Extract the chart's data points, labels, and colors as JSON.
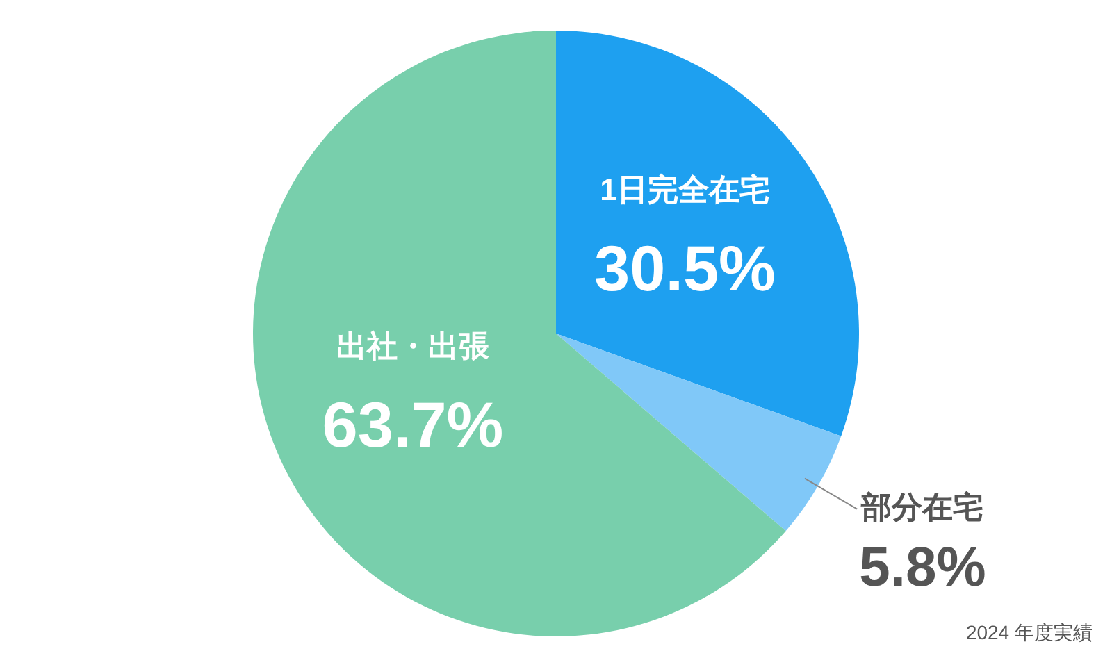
{
  "chart_data": {
    "type": "pie",
    "categories": [
      "1日完全在宅",
      "部分在宅",
      "出社・出張"
    ],
    "values": [
      30.5,
      5.8,
      63.7
    ],
    "value_labels": [
      "30.5%",
      "5.8%",
      "63.7%"
    ],
    "colors": [
      "#1ea0f0",
      "#80c8f8",
      "#78cfac"
    ],
    "annotations": [
      "2024 年度実績"
    ]
  }
}
